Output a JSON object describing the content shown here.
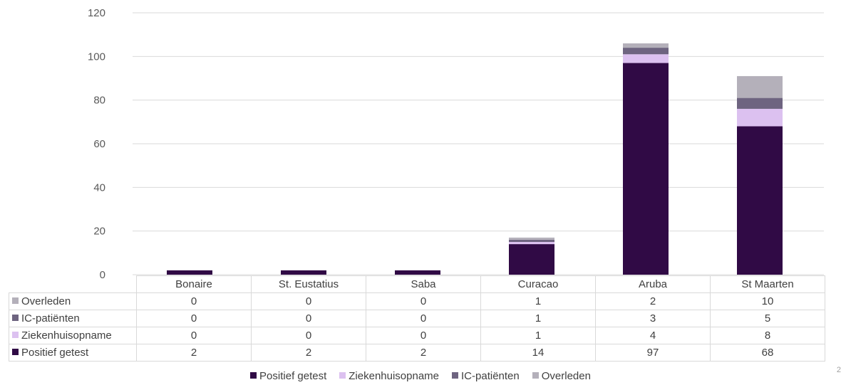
{
  "chart_data": {
    "type": "bar",
    "stacked": true,
    "categories": [
      "Bonaire",
      "St. Eustatius",
      "Saba",
      "Curacao",
      "Aruba",
      "St Maarten"
    ],
    "series": [
      {
        "name": "Positief getest",
        "color": "#300a45",
        "values": [
          2,
          2,
          2,
          14,
          97,
          68
        ]
      },
      {
        "name": "Ziekenhuisopname",
        "color": "#dcc1f0",
        "values": [
          0,
          0,
          0,
          1,
          4,
          8
        ]
      },
      {
        "name": "IC-patiënten",
        "color": "#6e6480",
        "values": [
          0,
          0,
          0,
          1,
          3,
          5
        ]
      },
      {
        "name": "Overleden",
        "color": "#b4b0ba",
        "values": [
          0,
          0,
          0,
          1,
          2,
          10
        ]
      }
    ],
    "table_row_order": [
      "Overleden",
      "IC-patiënten",
      "Ziekenhuisopname",
      "Positief getest"
    ],
    "yticks": [
      0,
      20,
      40,
      60,
      80,
      100,
      120
    ],
    "ylim": [
      0,
      120
    ],
    "grid": true,
    "legend_position": "bottom",
    "data_table": true
  },
  "page_number": "2"
}
